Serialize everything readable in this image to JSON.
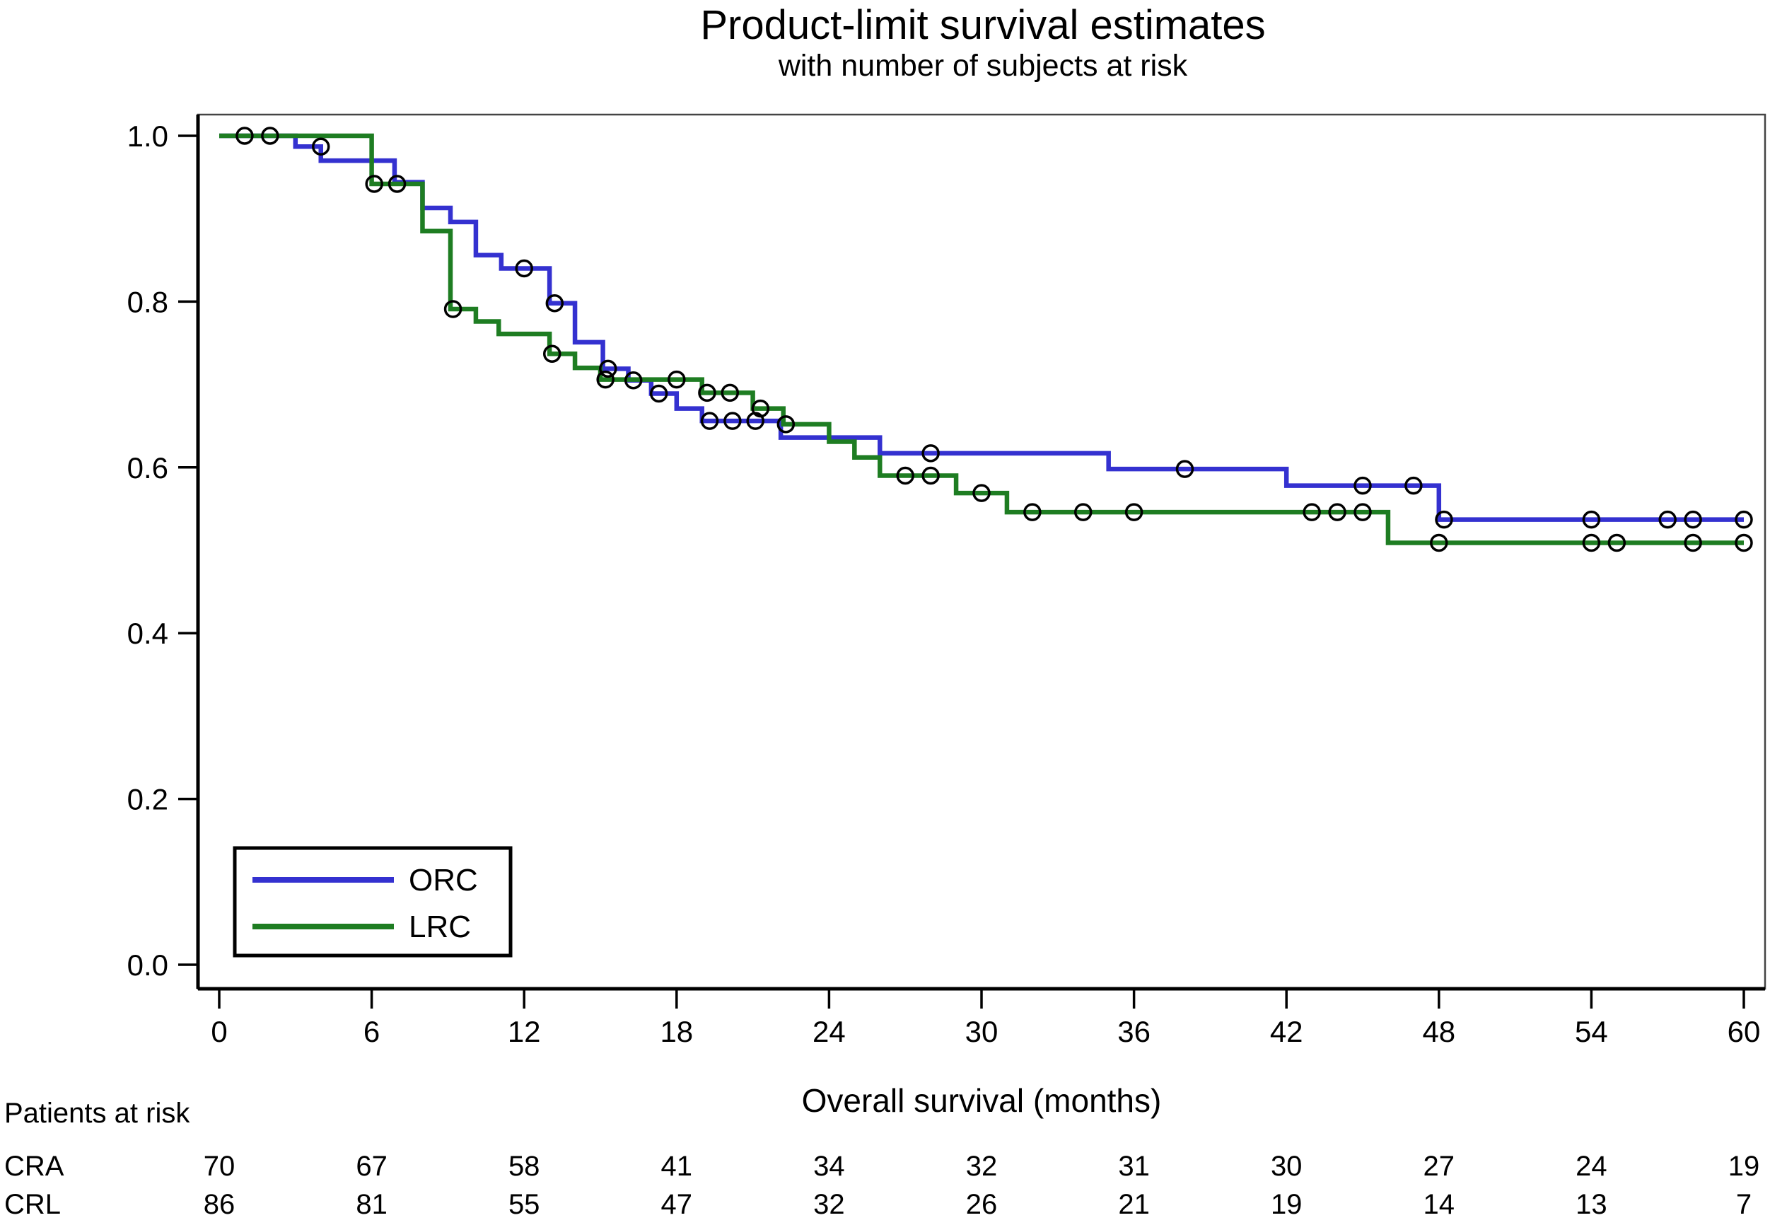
{
  "title": "Product-limit survival estimates",
  "subtitle": "with number of subjects at risk",
  "x_axis": {
    "label": "Overall survival (months)"
  },
  "colors": {
    "orc": "#3431d0",
    "lrc": "#1e7d22",
    "censor": "#000000",
    "axis": "#000000",
    "frame": "#444444"
  },
  "legend": {
    "entries": [
      {
        "label": "ORC",
        "color": "#3431d0"
      },
      {
        "label": "LRC",
        "color": "#1e7d22"
      }
    ]
  },
  "at_risk": {
    "heading": "Patients at risk",
    "time_points": [
      0,
      6,
      12,
      18,
      24,
      30,
      36,
      42,
      48,
      54,
      60
    ],
    "rows": [
      {
        "label": "CRA",
        "counts": [
          70,
          67,
          58,
          41,
          34,
          32,
          31,
          30,
          27,
          24,
          19
        ]
      },
      {
        "label": "CRL",
        "counts": [
          86,
          81,
          55,
          47,
          32,
          26,
          21,
          19,
          14,
          13,
          7
        ]
      }
    ]
  },
  "chart_data": {
    "type": "line",
    "chart_kind": "kaplan-meier-step",
    "title": "Product-limit survival estimates",
    "subtitle": "with number of subjects at risk",
    "xlabel": "Overall survival (months)",
    "ylabel": "",
    "xlim": [
      0,
      60
    ],
    "ylim": [
      0.0,
      1.0
    ],
    "x_ticks": [
      0,
      6,
      12,
      18,
      24,
      30,
      36,
      42,
      48,
      54,
      60
    ],
    "y_ticks": [
      "0.0",
      "0.2",
      "0.4",
      "0.6",
      "0.8",
      "1.0"
    ],
    "grid": false,
    "legend_position": "bottom-left-inside",
    "series": [
      {
        "name": "ORC",
        "color": "#3431d0",
        "steps": [
          [
            0,
            1.0
          ],
          [
            3,
            0.987
          ],
          [
            4,
            0.97
          ],
          [
            6.9,
            0.944
          ],
          [
            8,
            0.913
          ],
          [
            9.1,
            0.896
          ],
          [
            10.1,
            0.856
          ],
          [
            11.1,
            0.84
          ],
          [
            13,
            0.798
          ],
          [
            14,
            0.751
          ],
          [
            15.1,
            0.719
          ],
          [
            16.1,
            0.705
          ],
          [
            17,
            0.689
          ],
          [
            18,
            0.671
          ],
          [
            19,
            0.656
          ],
          [
            22.1,
            0.636
          ],
          [
            26,
            0.617
          ],
          [
            35,
            0.598
          ],
          [
            42,
            0.578
          ],
          [
            48,
            0.537
          ]
        ],
        "end_time": 60,
        "censors": [
          [
            1,
            1.0
          ],
          [
            2,
            1.0
          ],
          [
            4,
            0.987
          ],
          [
            12,
            0.84
          ],
          [
            13.2,
            0.798
          ],
          [
            15.3,
            0.719
          ],
          [
            16.3,
            0.705
          ],
          [
            17.3,
            0.689
          ],
          [
            19.3,
            0.656
          ],
          [
            20.2,
            0.656
          ],
          [
            21.1,
            0.656
          ],
          [
            28,
            0.617
          ],
          [
            38,
            0.598
          ],
          [
            45,
            0.578
          ],
          [
            47,
            0.578
          ],
          [
            48.2,
            0.537
          ],
          [
            54,
            0.537
          ],
          [
            57,
            0.537
          ],
          [
            58,
            0.537
          ],
          [
            60,
            0.537
          ]
        ]
      },
      {
        "name": "LRC",
        "color": "#1e7d22",
        "steps": [
          [
            0,
            1.0
          ],
          [
            6,
            0.942
          ],
          [
            8,
            0.885
          ],
          [
            9.1,
            0.791
          ],
          [
            10.1,
            0.776
          ],
          [
            11,
            0.761
          ],
          [
            13,
            0.737
          ],
          [
            14,
            0.72
          ],
          [
            15,
            0.706
          ],
          [
            19,
            0.69
          ],
          [
            21,
            0.671
          ],
          [
            22.2,
            0.652
          ],
          [
            24,
            0.631
          ],
          [
            25,
            0.612
          ],
          [
            26,
            0.59
          ],
          [
            29,
            0.569
          ],
          [
            31,
            0.546
          ],
          [
            46,
            0.509
          ]
        ],
        "end_time": 60,
        "censors": [
          [
            6.1,
            0.942
          ],
          [
            7,
            0.942
          ],
          [
            9.2,
            0.791
          ],
          [
            13.1,
            0.737
          ],
          [
            15.2,
            0.706
          ],
          [
            18,
            0.706
          ],
          [
            19.2,
            0.69
          ],
          [
            20.1,
            0.69
          ],
          [
            21.3,
            0.671
          ],
          [
            22.3,
            0.652
          ],
          [
            27,
            0.59
          ],
          [
            28,
            0.59
          ],
          [
            30,
            0.569
          ],
          [
            32,
            0.546
          ],
          [
            34,
            0.546
          ],
          [
            36,
            0.546
          ],
          [
            43,
            0.546
          ],
          [
            44,
            0.546
          ],
          [
            45,
            0.546
          ],
          [
            48,
            0.509
          ],
          [
            54,
            0.509
          ],
          [
            55,
            0.509
          ],
          [
            58,
            0.509
          ],
          [
            60,
            0.509
          ]
        ]
      }
    ]
  }
}
